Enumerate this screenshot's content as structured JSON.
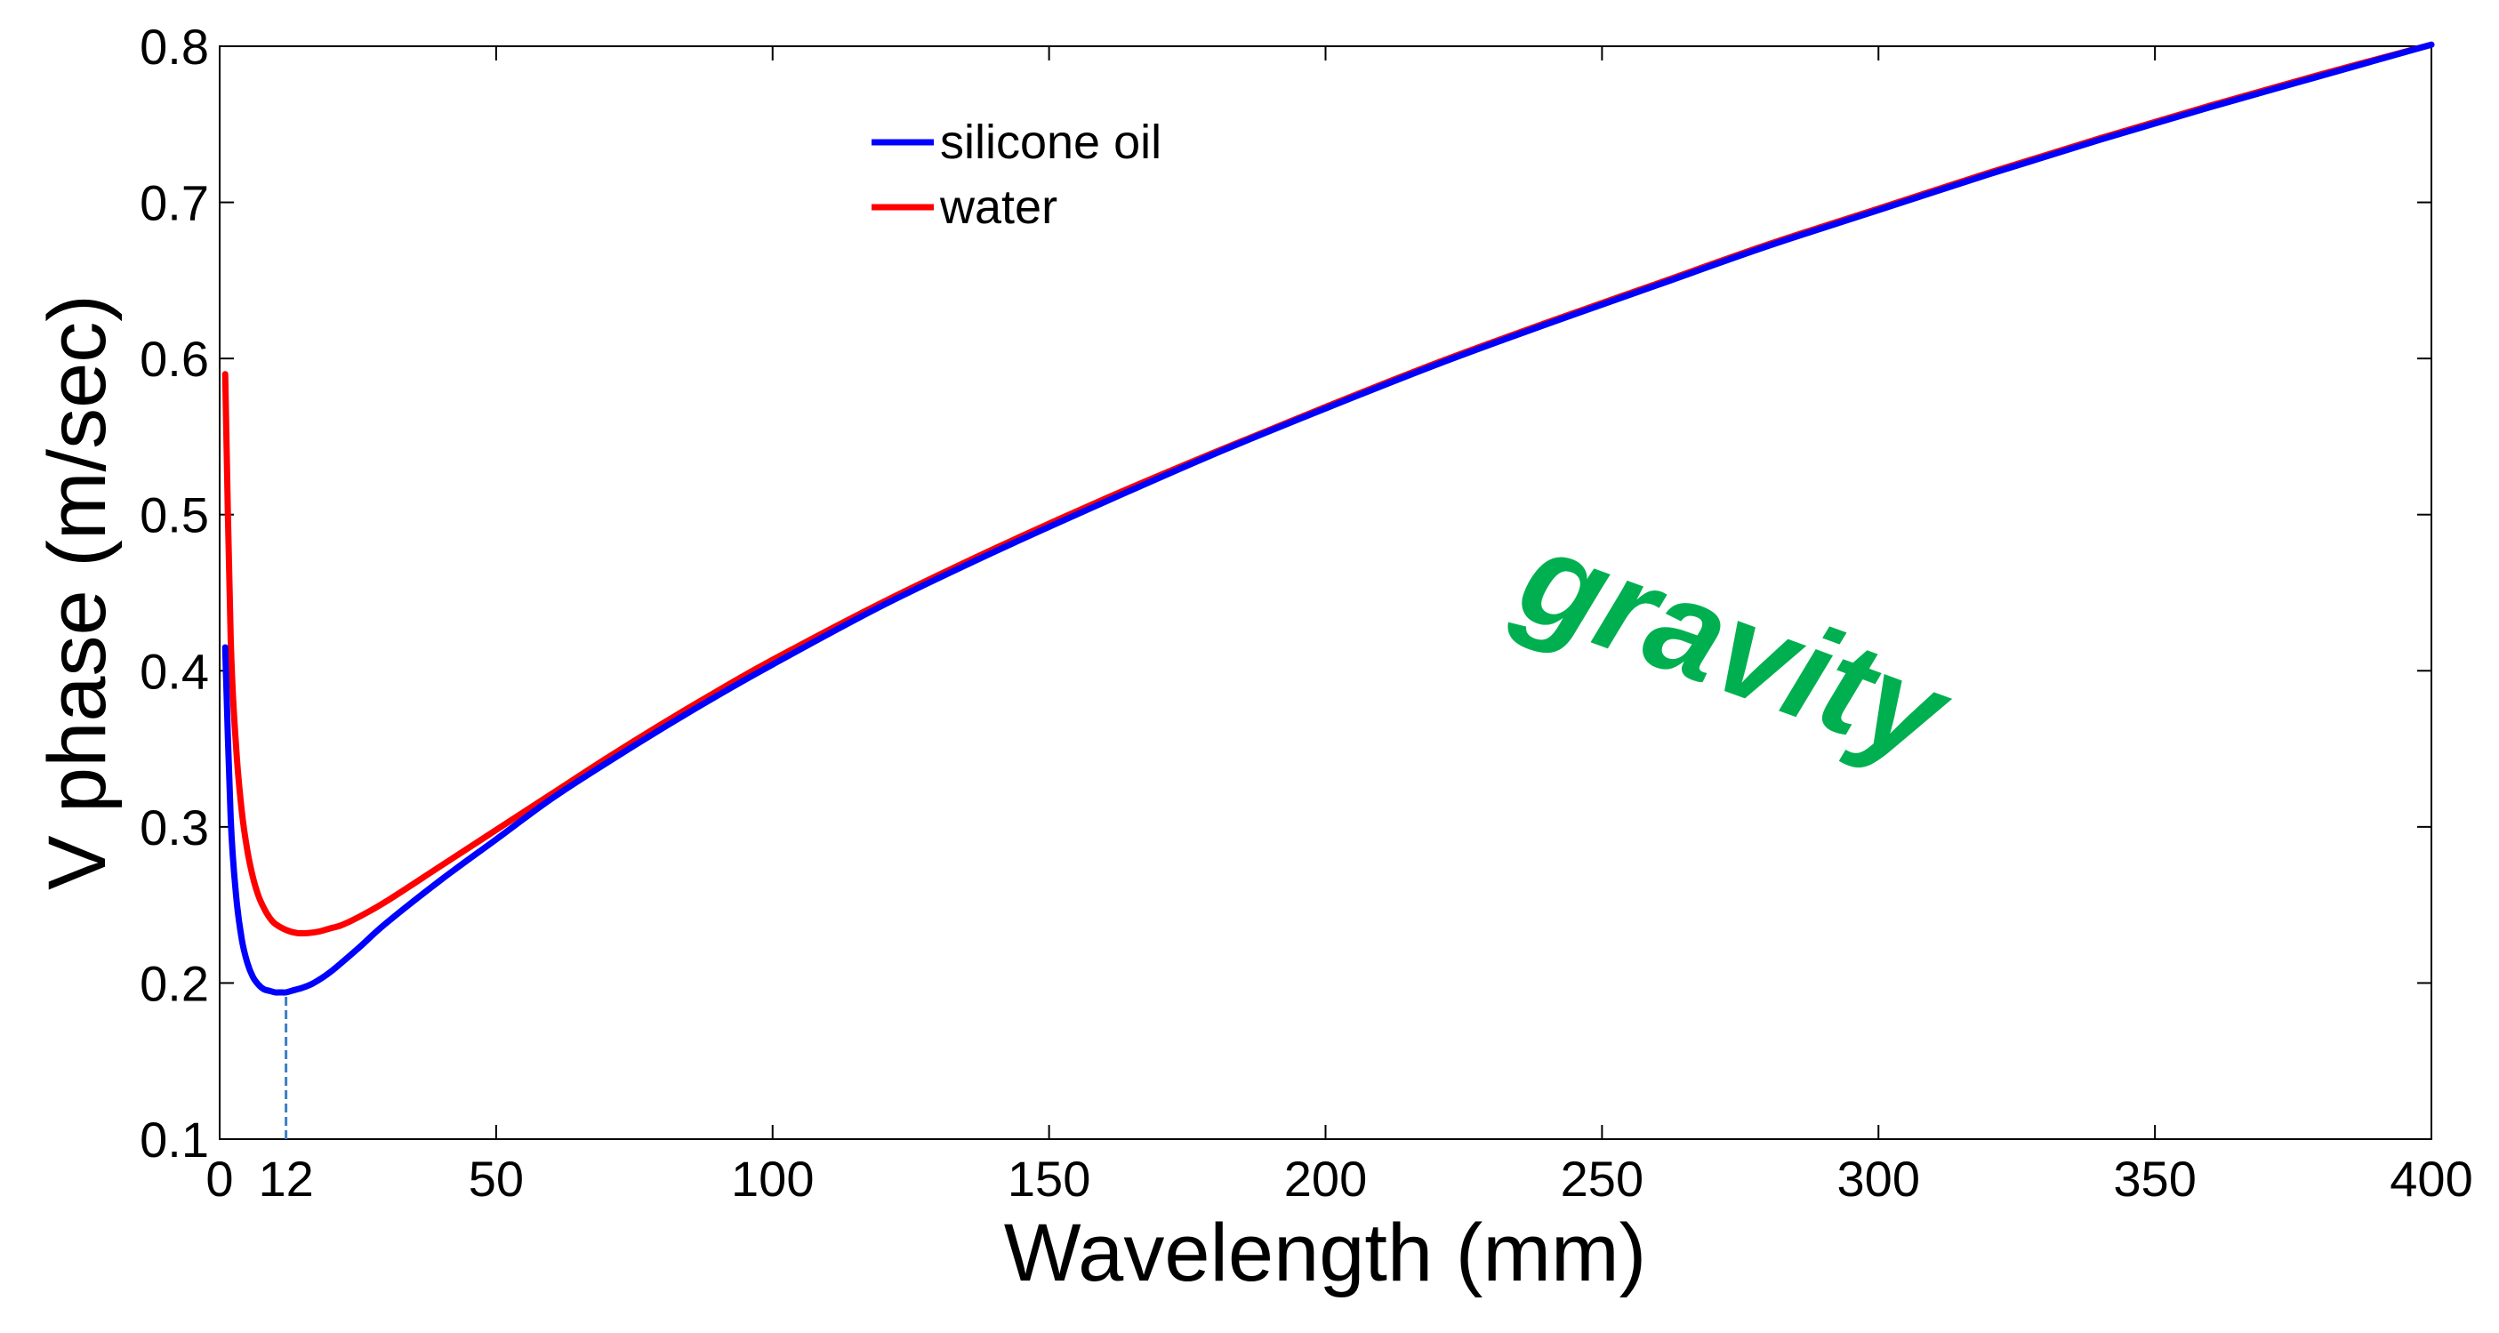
{
  "chart_data": {
    "type": "line",
    "xlabel": "Wavelength (mm)",
    "ylabel": "V phase (m/sec)",
    "xlim": [
      0,
      400
    ],
    "ylim": [
      0.1,
      0.8
    ],
    "xticks": [
      0,
      12,
      50,
      100,
      150,
      200,
      250,
      300,
      350,
      400
    ],
    "xtick_labels": [
      "0",
      "12",
      "50",
      "100",
      "150",
      "200",
      "250",
      "300",
      "350",
      "400"
    ],
    "yticks": [
      0.1,
      0.2,
      0.3,
      0.4,
      0.5,
      0.6,
      0.7,
      0.8
    ],
    "ytick_labels": [
      "0.1",
      "0.2",
      "0.3",
      "0.4",
      "0.5",
      "0.6",
      "0.7",
      "0.8"
    ],
    "grid": false,
    "legend_position": "top-center",
    "series": [
      {
        "name": "silicone oil",
        "color": "#0000ff",
        "x": [
          1,
          2,
          3,
          4,
          5,
          6,
          7,
          8,
          9,
          10,
          11,
          12,
          13,
          15,
          17,
          20,
          25,
          30,
          40,
          50,
          60,
          70,
          80,
          90,
          100,
          120,
          140,
          160,
          180,
          200,
          220,
          240,
          260,
          280,
          300,
          320,
          340,
          360,
          380,
          400
        ],
        "y": [
          0.415,
          0.305,
          0.255,
          0.228,
          0.213,
          0.204,
          0.199,
          0.196,
          0.195,
          0.194,
          0.194,
          0.194,
          0.195,
          0.197,
          0.2,
          0.207,
          0.222,
          0.238,
          0.266,
          0.292,
          0.318,
          0.341,
          0.363,
          0.384,
          0.404,
          0.442,
          0.476,
          0.508,
          0.539,
          0.568,
          0.596,
          0.622,
          0.647,
          0.672,
          0.695,
          0.718,
          0.74,
          0.761,
          0.781,
          0.801
        ]
      },
      {
        "name": "water",
        "color": "#ff0000",
        "x": [
          1,
          2,
          3,
          4,
          5,
          6,
          7,
          8,
          9,
          10,
          12,
          14,
          16,
          18,
          20,
          22,
          25,
          30,
          40,
          50,
          60,
          70,
          80,
          90,
          100,
          120,
          140,
          160,
          180,
          200,
          220,
          240,
          260,
          280,
          300,
          320,
          340,
          360,
          380,
          400
        ],
        "y": [
          0.59,
          0.42,
          0.35,
          0.31,
          0.285,
          0.268,
          0.256,
          0.248,
          0.242,
          0.238,
          0.234,
          0.232,
          0.232,
          0.233,
          0.235,
          0.237,
          0.242,
          0.252,
          0.275,
          0.298,
          0.321,
          0.344,
          0.366,
          0.387,
          0.407,
          0.444,
          0.478,
          0.51,
          0.54,
          0.569,
          0.597,
          0.623,
          0.648,
          0.673,
          0.696,
          0.719,
          0.741,
          0.762,
          0.782,
          0.801
        ]
      }
    ],
    "annotations": [
      {
        "text": "gravity",
        "color": "#00b050"
      }
    ],
    "marker_line": {
      "x": 12,
      "y_from": 0.1,
      "y_to": 0.194,
      "color": "#3a7ec8"
    }
  }
}
